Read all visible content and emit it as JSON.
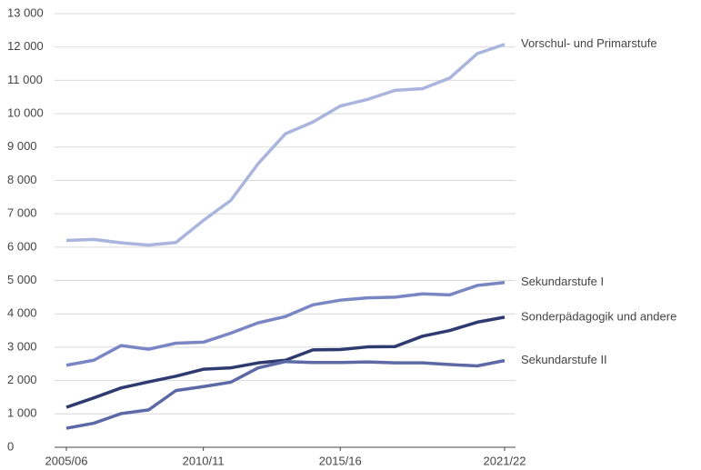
{
  "chart_data": {
    "type": "line",
    "categories": [
      "2005/06",
      null,
      null,
      null,
      null,
      "2010/11",
      null,
      null,
      null,
      null,
      "2015/16",
      null,
      null,
      null,
      null,
      null,
      "2021/22"
    ],
    "series": [
      {
        "name": "Vorschul- und Primarstufe",
        "color": "#aab5de",
        "values": [
          6200,
          6230,
          6130,
          6060,
          6140,
          6800,
          7400,
          8500,
          9400,
          9750,
          10230,
          10430,
          10700,
          10750,
          11070,
          11800,
          12080
        ]
      },
      {
        "name": "Sekundarstufe I",
        "color": "#7986c3",
        "values": [
          2460,
          2610,
          3050,
          2940,
          3120,
          3150,
          3420,
          3730,
          3920,
          4270,
          4410,
          4480,
          4500,
          4600,
          4570,
          4850,
          4940
        ]
      },
      {
        "name": "Sonderpädagogik und andere",
        "color": "#2f3b70",
        "values": [
          1200,
          1480,
          1780,
          1960,
          2130,
          2340,
          2380,
          2530,
          2610,
          2920,
          2930,
          3010,
          3020,
          3330,
          3500,
          3750,
          3900
        ]
      },
      {
        "name": "Sekundarstufe II",
        "color": "#5d69a6",
        "values": [
          570,
          720,
          1010,
          1120,
          1700,
          1820,
          1950,
          2380,
          2570,
          2540,
          2540,
          2560,
          2530,
          2530,
          2480,
          2440,
          2600
        ]
      }
    ],
    "ylim": [
      0,
      13000
    ],
    "yticks": [
      0,
      {
        "value": 1000,
        "label": "1 000"
      },
      {
        "value": 2000,
        "label": "2 000"
      },
      {
        "value": 3000,
        "label": "3 000"
      },
      {
        "value": 4000,
        "label": "4 000"
      },
      {
        "value": 5000,
        "label": "5 000"
      },
      {
        "value": 6000,
        "label": "6 000"
      },
      {
        "value": 7000,
        "label": "7 000"
      },
      {
        "value": 8000,
        "label": "8 000"
      },
      {
        "value": 9000,
        "label": "9 000"
      },
      {
        "value": 10000,
        "label": "10 000"
      },
      {
        "value": 11000,
        "label": "11 000"
      },
      {
        "value": 12000,
        "label": "12 000"
      },
      {
        "value": 13000,
        "label": "13 000"
      }
    ],
    "grid": true
  }
}
